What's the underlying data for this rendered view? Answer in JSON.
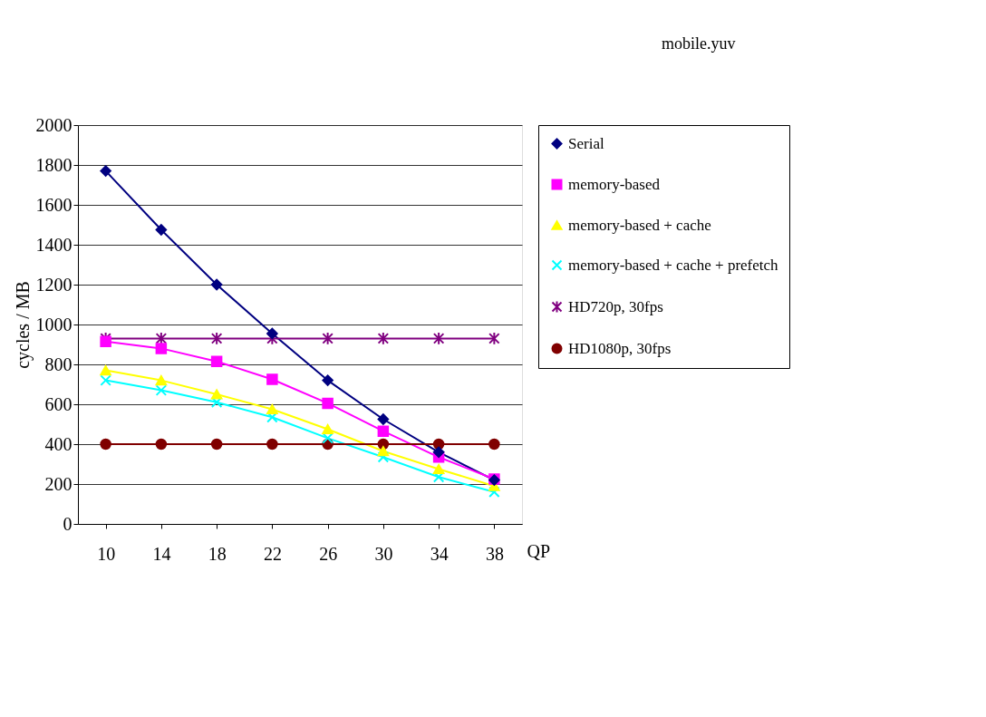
{
  "chart_data": {
    "type": "line",
    "title": "mobile.yuv",
    "xlabel": "QP",
    "ylabel": "cycles / MB",
    "categories": [
      "10",
      "14",
      "18",
      "22",
      "26",
      "30",
      "34",
      "38"
    ],
    "series": [
      {
        "name": "Serial",
        "color": "#000080",
        "marker": "diamond",
        "values": [
          1770,
          1475,
          1200,
          955,
          720,
          525,
          360,
          220
        ]
      },
      {
        "name": "memory-based",
        "color": "#ff00ff",
        "marker": "square",
        "values": [
          915,
          880,
          815,
          725,
          605,
          465,
          335,
          225
        ]
      },
      {
        "name": "memory-based + cache",
        "color": "#ffff00",
        "marker": "triangle",
        "values": [
          770,
          720,
          650,
          575,
          475,
          365,
          275,
          190
        ]
      },
      {
        "name": "memory-based + cache + prefetch",
        "color": "#00ffff",
        "marker": "cross",
        "values": [
          720,
          670,
          610,
          535,
          430,
          335,
          235,
          160
        ]
      },
      {
        "name": "HD720p, 30fps",
        "color": "#800080",
        "marker": "cross",
        "values": [
          930,
          930,
          930,
          930,
          930,
          930,
          930,
          930
        ]
      },
      {
        "name": "HD1080p, 30fps",
        "color": "#800000",
        "marker": "circle",
        "values": [
          400,
          400,
          400,
          400,
          400,
          400,
          400,
          400
        ]
      }
    ],
    "ylim": [
      0,
      2000
    ],
    "yticks": [
      0,
      200,
      400,
      600,
      800,
      1000,
      1200,
      1400,
      1600,
      1800,
      2000
    ],
    "grid": "y",
    "legend": "right",
    "line_style": "solid"
  }
}
